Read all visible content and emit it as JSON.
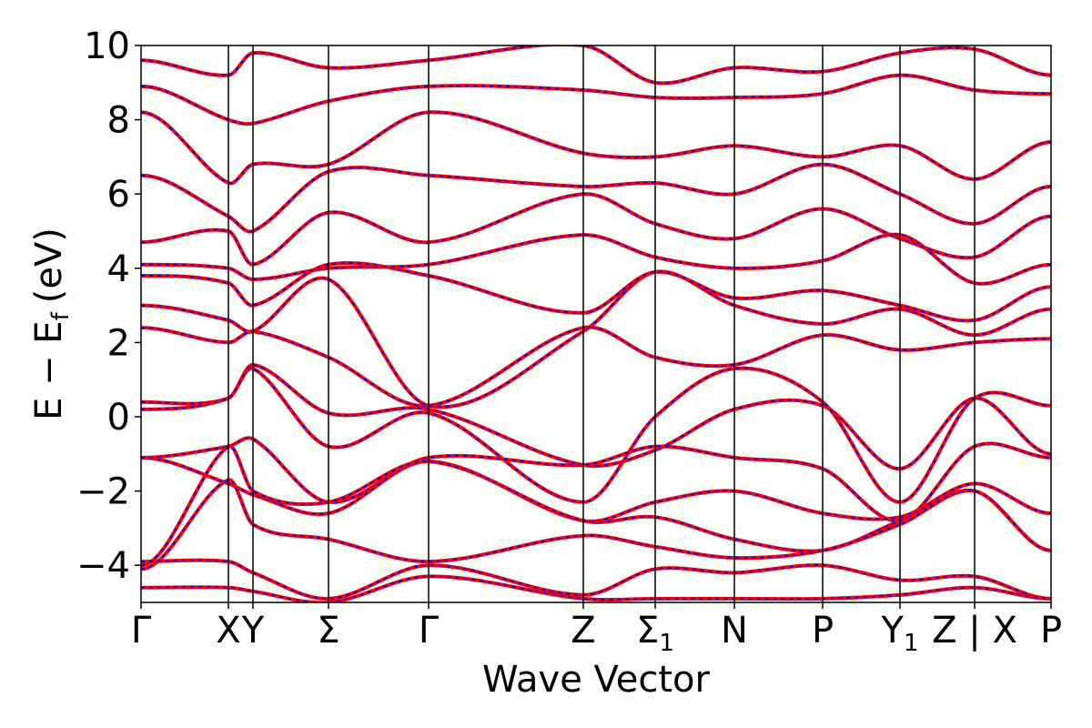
{
  "chart_data": {
    "type": "line",
    "title": "",
    "xlabel": "Wave Vector",
    "ylabel": "E − E",
    "ylabel_sub": "f",
    "ylabel_unit": "(eV)",
    "ylim": [
      -5,
      10
    ],
    "yticks": [
      -4,
      -2,
      0,
      2,
      4,
      6,
      8,
      10
    ],
    "ytick_labels": [
      "−4",
      "−2",
      "0",
      "2",
      "4",
      "6",
      "8",
      "10"
    ],
    "xlim": [
      0,
      100
    ],
    "kpoints": [
      {
        "pos": 0,
        "label": "Γ",
        "sub": ""
      },
      {
        "pos": 9.6,
        "label": "X",
        "sub": ""
      },
      {
        "pos": 12.3,
        "label": "Y",
        "sub": ""
      },
      {
        "pos": 20.6,
        "label": "Σ",
        "sub": ""
      },
      {
        "pos": 31.6,
        "label": "Γ",
        "sub": ""
      },
      {
        "pos": 48.6,
        "label": "Z",
        "sub": ""
      },
      {
        "pos": 56.5,
        "label": "Σ",
        "sub": "1"
      },
      {
        "pos": 65.2,
        "label": "N",
        "sub": ""
      },
      {
        "pos": 74.9,
        "label": "P",
        "sub": ""
      },
      {
        "pos": 83.4,
        "label": "Y",
        "sub": "1"
      },
      {
        "pos": 91.6,
        "label": "Z | X",
        "sub": ""
      },
      {
        "pos": 100,
        "label": "P",
        "sub": ""
      }
    ],
    "line_colors": {
      "solid": "#ff0000",
      "dashed": "#0000ff"
    },
    "series": [
      {
        "x": [
          0,
          9.6,
          12.3,
          20.6,
          31.6,
          48.6,
          56.5,
          65.2,
          74.9,
          83.4,
          91.6,
          100
        ],
        "values": [
          0.4,
          0.5,
          1.4,
          0.1,
          0.2,
          -1.3,
          -0.9,
          0.2,
          0.3,
          -1.4,
          0.5,
          -1.0
        ]
      },
      {
        "x": [
          0,
          9.6,
          12.3,
          20.6,
          31.6,
          48.6,
          56.5,
          65.2,
          74.9,
          83.4,
          91.6,
          100
        ],
        "values": [
          0.2,
          0.5,
          1.3,
          -0.8,
          0.1,
          -2.3,
          0.0,
          1.3,
          0.4,
          -2.3,
          0.5,
          0.3
        ]
      },
      {
        "x": [
          0,
          9.6,
          12.3,
          20.6,
          31.6,
          48.6,
          56.5,
          65.2,
          74.9,
          83.4,
          91.6,
          100
        ],
        "values": [
          -1.1,
          -0.8,
          -0.6,
          -2.3,
          -1.1,
          -1.3,
          -0.8,
          -1.1,
          -1.4,
          -2.8,
          -0.8,
          -1.1
        ]
      },
      {
        "x": [
          0,
          9.6,
          12.3,
          20.6,
          31.6,
          48.6,
          56.5,
          65.2,
          74.9,
          83.4,
          91.6,
          100
        ],
        "values": [
          -1.1,
          -1.8,
          -2.1,
          -2.6,
          -1.2,
          -2.8,
          -2.3,
          -2.0,
          -2.6,
          -2.7,
          -1.8,
          -2.6
        ]
      },
      {
        "x": [
          0,
          9.6,
          12.3,
          20.6,
          31.6,
          48.6,
          56.5,
          65.2,
          74.9,
          83.4,
          91.6,
          100
        ],
        "values": [
          -4.0,
          -0.8,
          -2.0,
          -2.3,
          -1.2,
          -2.8,
          -2.7,
          -3.3,
          -3.6,
          -2.8,
          -2.0,
          -3.6
        ]
      },
      {
        "x": [
          0,
          9.6,
          12.3,
          20.6,
          31.6,
          48.6,
          56.5,
          65.2,
          74.9,
          83.4,
          91.6,
          100
        ],
        "values": [
          -4.1,
          -1.7,
          -2.9,
          -3.3,
          -3.9,
          -3.2,
          -3.5,
          -3.8,
          -3.6,
          -2.9,
          -2.0,
          -3.6
        ]
      },
      {
        "x": [
          0,
          9.6,
          12.3,
          20.6,
          31.6,
          48.6,
          56.5,
          65.2,
          74.9,
          83.4,
          91.6,
          100
        ],
        "values": [
          -3.9,
          -3.9,
          -4.2,
          -4.9,
          -4.0,
          -4.8,
          -4.1,
          -4.2,
          -4.0,
          -4.4,
          -4.3,
          -4.9
        ]
      },
      {
        "x": [
          0,
          9.6,
          12.3,
          20.6,
          31.6,
          48.6,
          56.5,
          65.2,
          74.9,
          83.4,
          91.6,
          100
        ],
        "values": [
          -4.6,
          -4.6,
          -4.7,
          -5.0,
          -4.3,
          -4.9,
          -4.9,
          -4.9,
          -4.9,
          -4.8,
          -4.6,
          -4.9
        ]
      },
      {
        "x": [
          0,
          9.6,
          12.3,
          20.6,
          31.6,
          48.6,
          56.5,
          65.2,
          74.9,
          83.4,
          91.6,
          100
        ],
        "values": [
          2.4,
          2.0,
          2.3,
          1.6,
          0.3,
          2.4,
          1.6,
          1.4,
          2.2,
          1.8,
          2.0,
          2.1
        ]
      },
      {
        "x": [
          0,
          9.6,
          12.3,
          20.6,
          31.6,
          48.6,
          56.5,
          65.2,
          74.9,
          83.4,
          91.6,
          100
        ],
        "values": [
          3.0,
          2.6,
          2.3,
          3.7,
          0.3,
          2.3,
          3.9,
          3.0,
          2.5,
          2.9,
          2.2,
          2.9
        ]
      },
      {
        "x": [
          0,
          9.6,
          12.3,
          20.6,
          31.6,
          48.6,
          56.5,
          65.2,
          74.9,
          83.4,
          91.6,
          100
        ],
        "values": [
          3.8,
          3.6,
          3.0,
          4.1,
          3.8,
          2.8,
          3.9,
          3.2,
          3.4,
          3.0,
          2.6,
          3.5
        ]
      },
      {
        "x": [
          0,
          9.6,
          12.3,
          20.6,
          31.6,
          48.6,
          56.5,
          65.2,
          74.9,
          83.4,
          91.6,
          100
        ],
        "values": [
          4.1,
          4.0,
          3.7,
          4.0,
          4.1,
          4.9,
          4.3,
          4.0,
          4.2,
          4.9,
          3.6,
          4.1
        ]
      },
      {
        "x": [
          0,
          9.6,
          12.3,
          20.6,
          31.6,
          48.6,
          56.5,
          65.2,
          74.9,
          83.4,
          91.6,
          100
        ],
        "values": [
          4.7,
          5.0,
          4.1,
          5.5,
          4.7,
          6.0,
          5.2,
          4.8,
          5.6,
          4.8,
          4.3,
          5.4
        ]
      },
      {
        "x": [
          0,
          9.6,
          12.3,
          20.6,
          31.6,
          48.6,
          56.5,
          65.2,
          74.9,
          83.4,
          91.6,
          100
        ],
        "values": [
          6.5,
          5.4,
          5.0,
          6.6,
          6.5,
          6.2,
          6.3,
          6.0,
          6.8,
          6.0,
          5.2,
          6.2
        ]
      },
      {
        "x": [
          0,
          9.6,
          12.3,
          20.6,
          31.6,
          48.6,
          56.5,
          65.2,
          74.9,
          83.4,
          91.6,
          100
        ],
        "values": [
          8.2,
          6.3,
          6.8,
          6.8,
          8.2,
          7.1,
          7.0,
          7.3,
          7.0,
          7.3,
          6.4,
          7.4
        ]
      },
      {
        "x": [
          0,
          9.6,
          12.3,
          20.6,
          31.6,
          48.6,
          56.5,
          65.2,
          74.9,
          83.4,
          91.6,
          100
        ],
        "values": [
          8.9,
          8.0,
          7.9,
          8.5,
          8.9,
          8.8,
          8.6,
          8.6,
          8.7,
          9.2,
          8.8,
          8.7
        ]
      },
      {
        "x": [
          0,
          9.6,
          12.3,
          20.6,
          31.6,
          48.6,
          56.5,
          65.2,
          74.9,
          83.4,
          91.6,
          100
        ],
        "values": [
          9.6,
          9.2,
          9.8,
          9.4,
          9.6,
          10.0,
          9.0,
          9.4,
          9.3,
          9.8,
          9.9,
          9.2
        ]
      }
    ]
  }
}
